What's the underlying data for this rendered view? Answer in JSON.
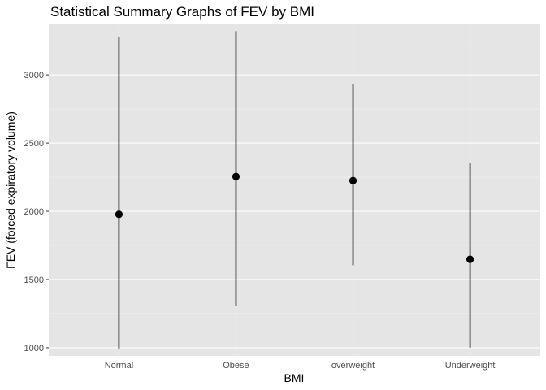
{
  "chart_data": {
    "type": "pointrange",
    "title": "Statistical Summary Graphs of FEV by BMI",
    "xlabel": "BMI",
    "ylabel": "FEV (forced expiratory volume)",
    "categories": [
      "Normal",
      "Obese",
      "overweight",
      "Underweight"
    ],
    "series": [
      {
        "mean": [
          1978,
          2255,
          2225,
          1648
        ],
        "min": [
          990,
          1305,
          1605,
          1000
        ],
        "max": [
          3280,
          3320,
          2935,
          2355
        ]
      }
    ],
    "y_ticks": [
      1000,
      1500,
      2000,
      2500,
      3000
    ],
    "y_tick_labels": [
      "1000",
      "1500",
      "2000",
      "2500",
      "3000"
    ],
    "ylim": [
      940,
      3370
    ],
    "grid": true,
    "legend": "none",
    "colors": {
      "panel_bg": "#e5e5e5",
      "grid_major": "#ffffff",
      "grid_minor": "#f0f0f0",
      "mark": "#000000",
      "tick": "#333333"
    }
  }
}
